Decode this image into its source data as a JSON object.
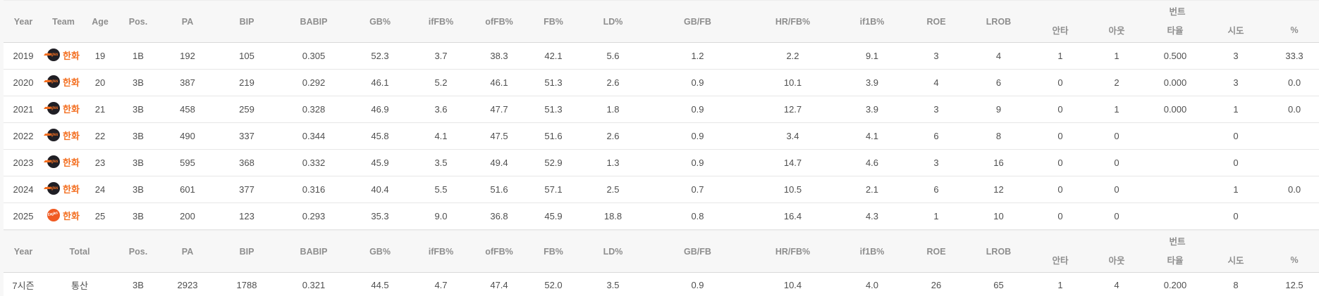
{
  "colors": {
    "accent_orange": "#f36f21",
    "header_text": "#8e8e8e",
    "body_text": "#4f4f4f",
    "header_bg": "#f7f7f7",
    "row_bg": "#ffffff",
    "row_border": "#e7e7e7",
    "classic_logo_dark": "#201f25",
    "new_logo_orange": "#f05a22"
  },
  "season_table": {
    "main_columns": [
      "Year",
      "Team",
      "Age",
      "Pos.",
      "PA",
      "BIP",
      "BABIP",
      "GB%",
      "ifFB%",
      "ofFB%",
      "FB%",
      "LD%",
      "GB/FB",
      "HR/FB%",
      "if1B%",
      "ROE",
      "LROB"
    ],
    "bunt_group_label": "번트",
    "bunt_columns": [
      "안타",
      "아웃",
      "타율",
      "시도",
      "%"
    ],
    "cell_keys": [
      "age",
      "pos",
      "pa",
      "bip",
      "babip",
      "gb_pct",
      "iffb_pct",
      "offb_pct",
      "fb_pct",
      "ld_pct",
      "gb_fb",
      "hr_fb_pct",
      "if1b_pct",
      "roe",
      "lrob",
      "bunt_hits",
      "bunt_outs",
      "bunt_avg",
      "bunt_attempts",
      "bunt_pct"
    ],
    "rows": [
      {
        "year": "2019",
        "team": {
          "name": "한화",
          "logo": "logo-classic"
        },
        "cells": [
          "19",
          "1B",
          "192",
          "105",
          "0.305",
          "52.3",
          "3.7",
          "38.3",
          "42.1",
          "5.6",
          "1.2",
          "2.2",
          "9.1",
          "3",
          "4",
          "1",
          "1",
          "0.500",
          "3",
          "33.3"
        ]
      },
      {
        "year": "2020",
        "team": {
          "name": "한화",
          "logo": "logo-classic"
        },
        "cells": [
          "20",
          "3B",
          "387",
          "219",
          "0.292",
          "46.1",
          "5.2",
          "46.1",
          "51.3",
          "2.6",
          "0.9",
          "10.1",
          "3.9",
          "4",
          "6",
          "0",
          "2",
          "0.000",
          "3",
          "0.0"
        ]
      },
      {
        "year": "2021",
        "team": {
          "name": "한화",
          "logo": "logo-classic"
        },
        "cells": [
          "21",
          "3B",
          "458",
          "259",
          "0.328",
          "46.9",
          "3.6",
          "47.7",
          "51.3",
          "1.8",
          "0.9",
          "12.7",
          "3.9",
          "3",
          "9",
          "0",
          "1",
          "0.000",
          "1",
          "0.0"
        ]
      },
      {
        "year": "2022",
        "team": {
          "name": "한화",
          "logo": "logo-classic"
        },
        "cells": [
          "22",
          "3B",
          "490",
          "337",
          "0.344",
          "45.8",
          "4.1",
          "47.5",
          "51.6",
          "2.6",
          "0.9",
          "3.4",
          "4.1",
          "6",
          "8",
          "0",
          "0",
          "",
          "0",
          ""
        ]
      },
      {
        "year": "2023",
        "team": {
          "name": "한화",
          "logo": "logo-classic"
        },
        "cells": [
          "23",
          "3B",
          "595",
          "368",
          "0.332",
          "45.9",
          "3.5",
          "49.4",
          "52.9",
          "1.3",
          "0.9",
          "14.7",
          "4.6",
          "3",
          "16",
          "0",
          "0",
          "",
          "0",
          ""
        ]
      },
      {
        "year": "2024",
        "team": {
          "name": "한화",
          "logo": "logo-classic"
        },
        "cells": [
          "24",
          "3B",
          "601",
          "377",
          "0.316",
          "40.4",
          "5.5",
          "51.6",
          "57.1",
          "2.5",
          "0.7",
          "10.5",
          "2.1",
          "6",
          "12",
          "0",
          "0",
          "",
          "1",
          "0.0"
        ]
      },
      {
        "year": "2025",
        "team": {
          "name": "한화",
          "logo": "logo-new"
        },
        "cells": [
          "25",
          "3B",
          "200",
          "123",
          "0.293",
          "35.3",
          "9.0",
          "36.8",
          "45.9",
          "18.8",
          "0.8",
          "16.4",
          "4.3",
          "1",
          "10",
          "0",
          "0",
          "",
          "0",
          ""
        ]
      }
    ]
  },
  "career_table": {
    "main_columns": [
      "Year",
      "Total",
      "Pos.",
      "PA",
      "BIP",
      "BABIP",
      "GB%",
      "ifFB%",
      "ofFB%",
      "FB%",
      "LD%",
      "GB/FB",
      "HR/FB%",
      "if1B%",
      "ROE",
      "LROB"
    ],
    "bunt_group_label": "번트",
    "bunt_columns": [
      "안타",
      "아웃",
      "타율",
      "시도",
      "%"
    ],
    "cell_keys": [
      "pos",
      "pa",
      "bip",
      "babip",
      "gb_pct",
      "iffb_pct",
      "offb_pct",
      "fb_pct",
      "ld_pct",
      "gb_fb",
      "hr_fb_pct",
      "if1b_pct",
      "roe",
      "lrob",
      "bunt_hits",
      "bunt_outs",
      "bunt_avg",
      "bunt_attempts",
      "bunt_pct"
    ],
    "row": {
      "year": "7시즌",
      "total": "통산",
      "cells": [
        "3B",
        "2923",
        "1788",
        "0.321",
        "44.5",
        "4.7",
        "47.4",
        "52.0",
        "3.5",
        "0.9",
        "10.4",
        "4.0",
        "26",
        "65",
        "1",
        "4",
        "0.200",
        "8",
        "12.5"
      ]
    }
  }
}
